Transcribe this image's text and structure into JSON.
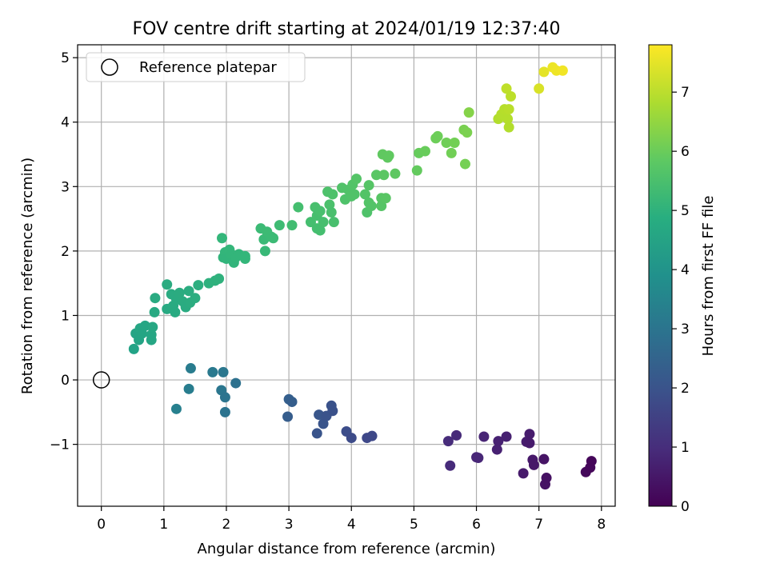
{
  "chart_data": {
    "type": "scatter",
    "title": "FOV centre drift starting at 2024/01/19 12:37:40",
    "xlabel": "Angular distance from reference (arcmin)",
    "ylabel": "Rotation from reference (arcmin)",
    "xlim": [
      -0.38,
      8.22
    ],
    "ylim": [
      -1.96,
      5.2
    ],
    "xticks": [
      0,
      1,
      2,
      3,
      4,
      5,
      6,
      7,
      8
    ],
    "xtick_labels": [
      "0",
      "1",
      "2",
      "3",
      "4",
      "5",
      "6",
      "7",
      "8"
    ],
    "yticks": [
      -1,
      0,
      1,
      2,
      3,
      4,
      5
    ],
    "ytick_labels": [
      "−1",
      "0",
      "1",
      "2",
      "3",
      "4",
      "5"
    ],
    "grid": true,
    "legend": {
      "position": "top-left",
      "entries": [
        "Reference platepar"
      ]
    },
    "reference_point": {
      "x": 0,
      "y": 0,
      "marker": "open-circle",
      "color": "#000000"
    },
    "colorbar": {
      "label": "Hours from first FF file",
      "range": [
        0,
        7.8
      ],
      "ticks": [
        0,
        1,
        2,
        3,
        4,
        5,
        6,
        7
      ],
      "tick_labels": [
        "0",
        "1",
        "2",
        "3",
        "4",
        "5",
        "6",
        "7"
      ],
      "colormap": "viridis"
    },
    "points": [
      {
        "x": 5.58,
        "y": -1.33,
        "h": 0.95
      },
      {
        "x": 5.55,
        "y": -0.95,
        "h": 0.97
      },
      {
        "x": 5.68,
        "y": -0.86,
        "h": 0.94
      },
      {
        "x": 6.0,
        "y": -1.2,
        "h": 0.85
      },
      {
        "x": 6.03,
        "y": -1.21,
        "h": 0.84
      },
      {
        "x": 6.12,
        "y": -0.88,
        "h": 0.8
      },
      {
        "x": 6.33,
        "y": -1.08,
        "h": 0.72
      },
      {
        "x": 6.35,
        "y": -0.95,
        "h": 0.72
      },
      {
        "x": 6.48,
        "y": -0.88,
        "h": 0.7
      },
      {
        "x": 6.75,
        "y": -1.45,
        "h": 0.55
      },
      {
        "x": 6.8,
        "y": -0.96,
        "h": 0.62
      },
      {
        "x": 6.85,
        "y": -0.84,
        "h": 0.6
      },
      {
        "x": 6.85,
        "y": -0.98,
        "h": 0.58
      },
      {
        "x": 6.9,
        "y": -1.24,
        "h": 0.5
      },
      {
        "x": 6.92,
        "y": -1.32,
        "h": 0.48
      },
      {
        "x": 7.08,
        "y": -1.23,
        "h": 0.42
      },
      {
        "x": 7.1,
        "y": -1.62,
        "h": 0.38
      },
      {
        "x": 7.12,
        "y": -1.52,
        "h": 0.36
      },
      {
        "x": 7.75,
        "y": -1.43,
        "h": 0.18
      },
      {
        "x": 7.82,
        "y": -1.36,
        "h": 0.14
      },
      {
        "x": 7.84,
        "y": -1.26,
        "h": 0.12
      },
      {
        "x": 3.45,
        "y": -0.83,
        "h": 2.05
      },
      {
        "x": 3.48,
        "y": -0.54,
        "h": 2.1
      },
      {
        "x": 3.55,
        "y": -0.68,
        "h": 2.05
      },
      {
        "x": 3.6,
        "y": -0.56,
        "h": 2.0
      },
      {
        "x": 3.68,
        "y": -0.4,
        "h": 1.98
      },
      {
        "x": 3.7,
        "y": -0.48,
        "h": 1.97
      },
      {
        "x": 3.92,
        "y": -0.8,
        "h": 1.85
      },
      {
        "x": 4.0,
        "y": -0.9,
        "h": 1.8
      },
      {
        "x": 4.25,
        "y": -0.9,
        "h": 1.72
      },
      {
        "x": 4.33,
        "y": -0.87,
        "h": 1.7
      },
      {
        "x": 2.98,
        "y": -0.57,
        "h": 2.3
      },
      {
        "x": 3.0,
        "y": -0.3,
        "h": 2.35
      },
      {
        "x": 3.05,
        "y": -0.34,
        "h": 2.33
      },
      {
        "x": 1.2,
        "y": -0.45,
        "h": 3.4
      },
      {
        "x": 1.4,
        "y": -0.14,
        "h": 3.3
      },
      {
        "x": 1.43,
        "y": 0.18,
        "h": 3.25
      },
      {
        "x": 1.78,
        "y": 0.12,
        "h": 3.15
      },
      {
        "x": 1.95,
        "y": 0.12,
        "h": 3.1
      },
      {
        "x": 1.92,
        "y": -0.16,
        "h": 3.05
      },
      {
        "x": 1.98,
        "y": -0.27,
        "h": 3.0
      },
      {
        "x": 1.98,
        "y": -0.5,
        "h": 2.98
      },
      {
        "x": 2.15,
        "y": -0.05,
        "h": 2.9
      },
      {
        "x": 0.52,
        "y": 0.48,
        "h": 4.5
      },
      {
        "x": 0.55,
        "y": 0.72,
        "h": 4.55
      },
      {
        "x": 0.6,
        "y": 0.62,
        "h": 4.55
      },
      {
        "x": 0.62,
        "y": 0.8,
        "h": 4.6
      },
      {
        "x": 0.65,
        "y": 0.72,
        "h": 4.58
      },
      {
        "x": 0.7,
        "y": 0.84,
        "h": 4.62
      },
      {
        "x": 0.8,
        "y": 0.62,
        "h": 4.6
      },
      {
        "x": 0.8,
        "y": 0.7,
        "h": 4.62
      },
      {
        "x": 0.82,
        "y": 0.82,
        "h": 4.65
      },
      {
        "x": 0.85,
        "y": 1.05,
        "h": 4.7
      },
      {
        "x": 0.86,
        "y": 1.27,
        "h": 4.75
      },
      {
        "x": 1.05,
        "y": 1.48,
        "h": 4.8
      },
      {
        "x": 1.05,
        "y": 1.1,
        "h": 4.72
      },
      {
        "x": 1.12,
        "y": 1.33,
        "h": 4.78
      },
      {
        "x": 1.15,
        "y": 1.15,
        "h": 4.76
      },
      {
        "x": 1.18,
        "y": 1.05,
        "h": 4.74
      },
      {
        "x": 1.2,
        "y": 1.25,
        "h": 4.78
      },
      {
        "x": 1.25,
        "y": 1.35,
        "h": 4.8
      },
      {
        "x": 1.3,
        "y": 1.22,
        "h": 4.8
      },
      {
        "x": 1.35,
        "y": 1.13,
        "h": 4.78
      },
      {
        "x": 1.4,
        "y": 1.38,
        "h": 4.82
      },
      {
        "x": 1.42,
        "y": 1.2,
        "h": 4.82
      },
      {
        "x": 1.5,
        "y": 1.27,
        "h": 4.84
      },
      {
        "x": 1.55,
        "y": 1.47,
        "h": 4.9
      },
      {
        "x": 1.72,
        "y": 1.5,
        "h": 4.95
      },
      {
        "x": 1.82,
        "y": 1.54,
        "h": 4.98
      },
      {
        "x": 1.88,
        "y": 1.57,
        "h": 5.0
      },
      {
        "x": 1.93,
        "y": 2.2,
        "h": 5.15
      },
      {
        "x": 1.95,
        "y": 1.9,
        "h": 5.1
      },
      {
        "x": 1.98,
        "y": 1.98,
        "h": 5.12
      },
      {
        "x": 2.0,
        "y": 1.88,
        "h": 5.1
      },
      {
        "x": 2.05,
        "y": 2.02,
        "h": 5.15
      },
      {
        "x": 2.08,
        "y": 1.95,
        "h": 5.12
      },
      {
        "x": 2.12,
        "y": 1.82,
        "h": 5.1
      },
      {
        "x": 2.15,
        "y": 1.9,
        "h": 5.12
      },
      {
        "x": 2.2,
        "y": 1.95,
        "h": 5.14
      },
      {
        "x": 2.3,
        "y": 1.88,
        "h": 5.15
      },
      {
        "x": 2.3,
        "y": 1.92,
        "h": 5.16
      },
      {
        "x": 2.55,
        "y": 2.35,
        "h": 5.3
      },
      {
        "x": 2.6,
        "y": 2.18,
        "h": 5.28
      },
      {
        "x": 2.62,
        "y": 2.0,
        "h": 5.25
      },
      {
        "x": 2.65,
        "y": 2.3,
        "h": 5.32
      },
      {
        "x": 2.72,
        "y": 2.22,
        "h": 5.3
      },
      {
        "x": 2.75,
        "y": 2.2,
        "h": 5.3
      },
      {
        "x": 2.85,
        "y": 2.4,
        "h": 5.35
      },
      {
        "x": 3.05,
        "y": 2.4,
        "h": 5.4
      },
      {
        "x": 3.15,
        "y": 2.68,
        "h": 5.45
      },
      {
        "x": 3.35,
        "y": 2.45,
        "h": 5.45
      },
      {
        "x": 3.42,
        "y": 2.68,
        "h": 5.5
      },
      {
        "x": 3.45,
        "y": 2.55,
        "h": 5.48
      },
      {
        "x": 3.45,
        "y": 2.35,
        "h": 5.45
      },
      {
        "x": 3.5,
        "y": 2.62,
        "h": 5.5
      },
      {
        "x": 3.5,
        "y": 2.32,
        "h": 5.45
      },
      {
        "x": 3.55,
        "y": 2.45,
        "h": 5.48
      },
      {
        "x": 3.62,
        "y": 2.92,
        "h": 5.58
      },
      {
        "x": 3.65,
        "y": 2.72,
        "h": 5.55
      },
      {
        "x": 3.68,
        "y": 2.6,
        "h": 5.52
      },
      {
        "x": 3.7,
        "y": 2.88,
        "h": 5.58
      },
      {
        "x": 3.72,
        "y": 2.45,
        "h": 5.5
      },
      {
        "x": 3.85,
        "y": 2.98,
        "h": 5.62
      },
      {
        "x": 3.9,
        "y": 2.8,
        "h": 5.6
      },
      {
        "x": 3.95,
        "y": 2.95,
        "h": 5.62
      },
      {
        "x": 4.0,
        "y": 2.85,
        "h": 5.62
      },
      {
        "x": 4.02,
        "y": 3.03,
        "h": 5.65
      },
      {
        "x": 4.05,
        "y": 2.88,
        "h": 5.63
      },
      {
        "x": 4.08,
        "y": 3.12,
        "h": 5.68
      },
      {
        "x": 4.22,
        "y": 2.88,
        "h": 5.66
      },
      {
        "x": 4.25,
        "y": 2.6,
        "h": 5.6
      },
      {
        "x": 4.28,
        "y": 3.02,
        "h": 5.7
      },
      {
        "x": 4.28,
        "y": 2.75,
        "h": 5.66
      },
      {
        "x": 4.32,
        "y": 2.7,
        "h": 5.65
      },
      {
        "x": 4.4,
        "y": 3.18,
        "h": 5.75
      },
      {
        "x": 4.48,
        "y": 2.82,
        "h": 5.72
      },
      {
        "x": 4.48,
        "y": 2.7,
        "h": 5.7
      },
      {
        "x": 4.5,
        "y": 3.5,
        "h": 5.85
      },
      {
        "x": 4.52,
        "y": 3.18,
        "h": 5.78
      },
      {
        "x": 4.55,
        "y": 2.82,
        "h": 5.74
      },
      {
        "x": 4.58,
        "y": 3.45,
        "h": 5.85
      },
      {
        "x": 4.6,
        "y": 3.48,
        "h": 5.86
      },
      {
        "x": 4.7,
        "y": 3.2,
        "h": 5.82
      },
      {
        "x": 5.05,
        "y": 3.25,
        "h": 5.9
      },
      {
        "x": 5.08,
        "y": 3.52,
        "h": 5.95
      },
      {
        "x": 5.18,
        "y": 3.55,
        "h": 5.98
      },
      {
        "x": 5.35,
        "y": 3.75,
        "h": 6.05
      },
      {
        "x": 5.38,
        "y": 3.78,
        "h": 6.05
      },
      {
        "x": 5.52,
        "y": 3.68,
        "h": 6.08
      },
      {
        "x": 5.6,
        "y": 3.52,
        "h": 6.1
      },
      {
        "x": 5.65,
        "y": 3.68,
        "h": 6.12
      },
      {
        "x": 5.8,
        "y": 3.88,
        "h": 6.2
      },
      {
        "x": 5.82,
        "y": 3.35,
        "h": 6.15
      },
      {
        "x": 5.85,
        "y": 3.84,
        "h": 6.22
      },
      {
        "x": 5.88,
        "y": 4.15,
        "h": 6.35
      },
      {
        "x": 6.35,
        "y": 4.05,
        "h": 6.9
      },
      {
        "x": 6.4,
        "y": 4.12,
        "h": 6.92
      },
      {
        "x": 6.45,
        "y": 4.2,
        "h": 6.95
      },
      {
        "x": 6.48,
        "y": 4.52,
        "h": 7.05
      },
      {
        "x": 6.5,
        "y": 4.05,
        "h": 6.92
      },
      {
        "x": 6.52,
        "y": 4.2,
        "h": 6.98
      },
      {
        "x": 6.52,
        "y": 3.92,
        "h": 6.9
      },
      {
        "x": 6.55,
        "y": 4.4,
        "h": 7.02
      },
      {
        "x": 7.0,
        "y": 4.52,
        "h": 7.35
      },
      {
        "x": 7.08,
        "y": 4.78,
        "h": 7.5
      },
      {
        "x": 7.22,
        "y": 4.85,
        "h": 7.6
      },
      {
        "x": 7.28,
        "y": 4.8,
        "h": 7.62
      },
      {
        "x": 7.38,
        "y": 4.8,
        "h": 7.65
      }
    ]
  }
}
